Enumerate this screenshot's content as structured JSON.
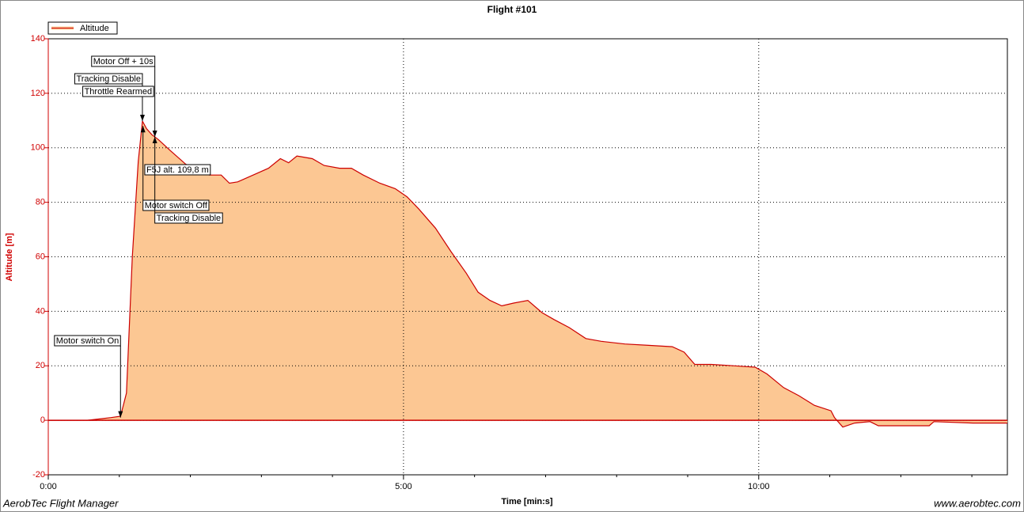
{
  "chart_data": {
    "type": "area",
    "title": "Flight #101",
    "xlabel": "Time [min:s]",
    "ylabel": "Altitude [m]",
    "footer_left": "AerobTec Flight Manager",
    "footer_right": "www.aerobtec.com",
    "xlim": [
      0,
      810
    ],
    "ylim": [
      -20,
      140
    ],
    "xticks": [
      {
        "value": 0,
        "label": "0:00"
      },
      {
        "value": 300,
        "label": "5:00"
      },
      {
        "value": 600,
        "label": "10:00"
      }
    ],
    "x_minor_ticks": [
      60,
      120,
      180,
      240,
      360,
      420,
      480,
      540,
      660,
      720,
      780
    ],
    "yticks": [
      -20,
      0,
      20,
      40,
      60,
      80,
      100,
      120,
      140
    ],
    "grid": true,
    "legend": "top-left",
    "x": [
      0,
      33,
      53,
      61,
      66,
      71,
      76,
      79.5,
      83,
      87.5,
      93,
      103,
      116,
      126,
      136,
      146,
      153,
      160,
      173,
      186,
      196,
      203,
      210,
      223,
      233,
      246,
      256,
      266,
      280,
      293,
      303,
      313,
      327,
      340,
      353,
      363,
      373,
      383,
      393,
      405,
      417,
      427,
      440,
      454,
      467,
      487,
      507,
      527,
      537,
      546,
      560,
      580,
      597,
      607,
      621,
      634,
      647,
      661,
      664,
      671,
      681,
      694,
      701,
      727,
      744,
      748,
      781,
      810
    ],
    "series": [
      {
        "name": "Altitude",
        "color": "#cc0000",
        "fill": "#fcc793",
        "values": [
          0,
          0,
          1,
          1.5,
          10,
          60,
          95,
          109.8,
          107,
          104.8,
          103,
          99,
          94,
          92,
          90,
          90,
          87,
          87.5,
          90,
          92.5,
          96,
          94.5,
          97,
          96,
          93.5,
          92.5,
          92.5,
          90,
          87,
          85,
          82,
          77.5,
          70.5,
          62,
          54,
          47,
          44,
          42,
          43,
          44,
          39.5,
          37,
          34,
          30,
          29,
          28,
          27.5,
          27,
          25,
          20.5,
          20.5,
          20,
          19.5,
          17,
          12,
          9,
          5.5,
          3.5,
          1,
          -2.5,
          -1,
          -0.5,
          -2,
          -2,
          -2,
          -0.5,
          -1,
          -1
        ]
      }
    ],
    "annotations": [
      {
        "text": "Motor switch On",
        "x": 61,
        "y": 1
      },
      {
        "text": "Motor Off + 10s",
        "x": 90,
        "y": 104
      },
      {
        "text": "Tracking Disable",
        "x": 79.5,
        "y": 109.8
      },
      {
        "text": "Throttle Rearmed",
        "x": 89,
        "y": 104.5
      },
      {
        "text": "F5J alt. 109,8 m",
        "x": 79.5,
        "y": 109.8
      },
      {
        "text": "Motor switch Off",
        "x": 80,
        "y": 108
      },
      {
        "text": "Tracking Disable",
        "x": 90,
        "y": 104
      }
    ]
  }
}
